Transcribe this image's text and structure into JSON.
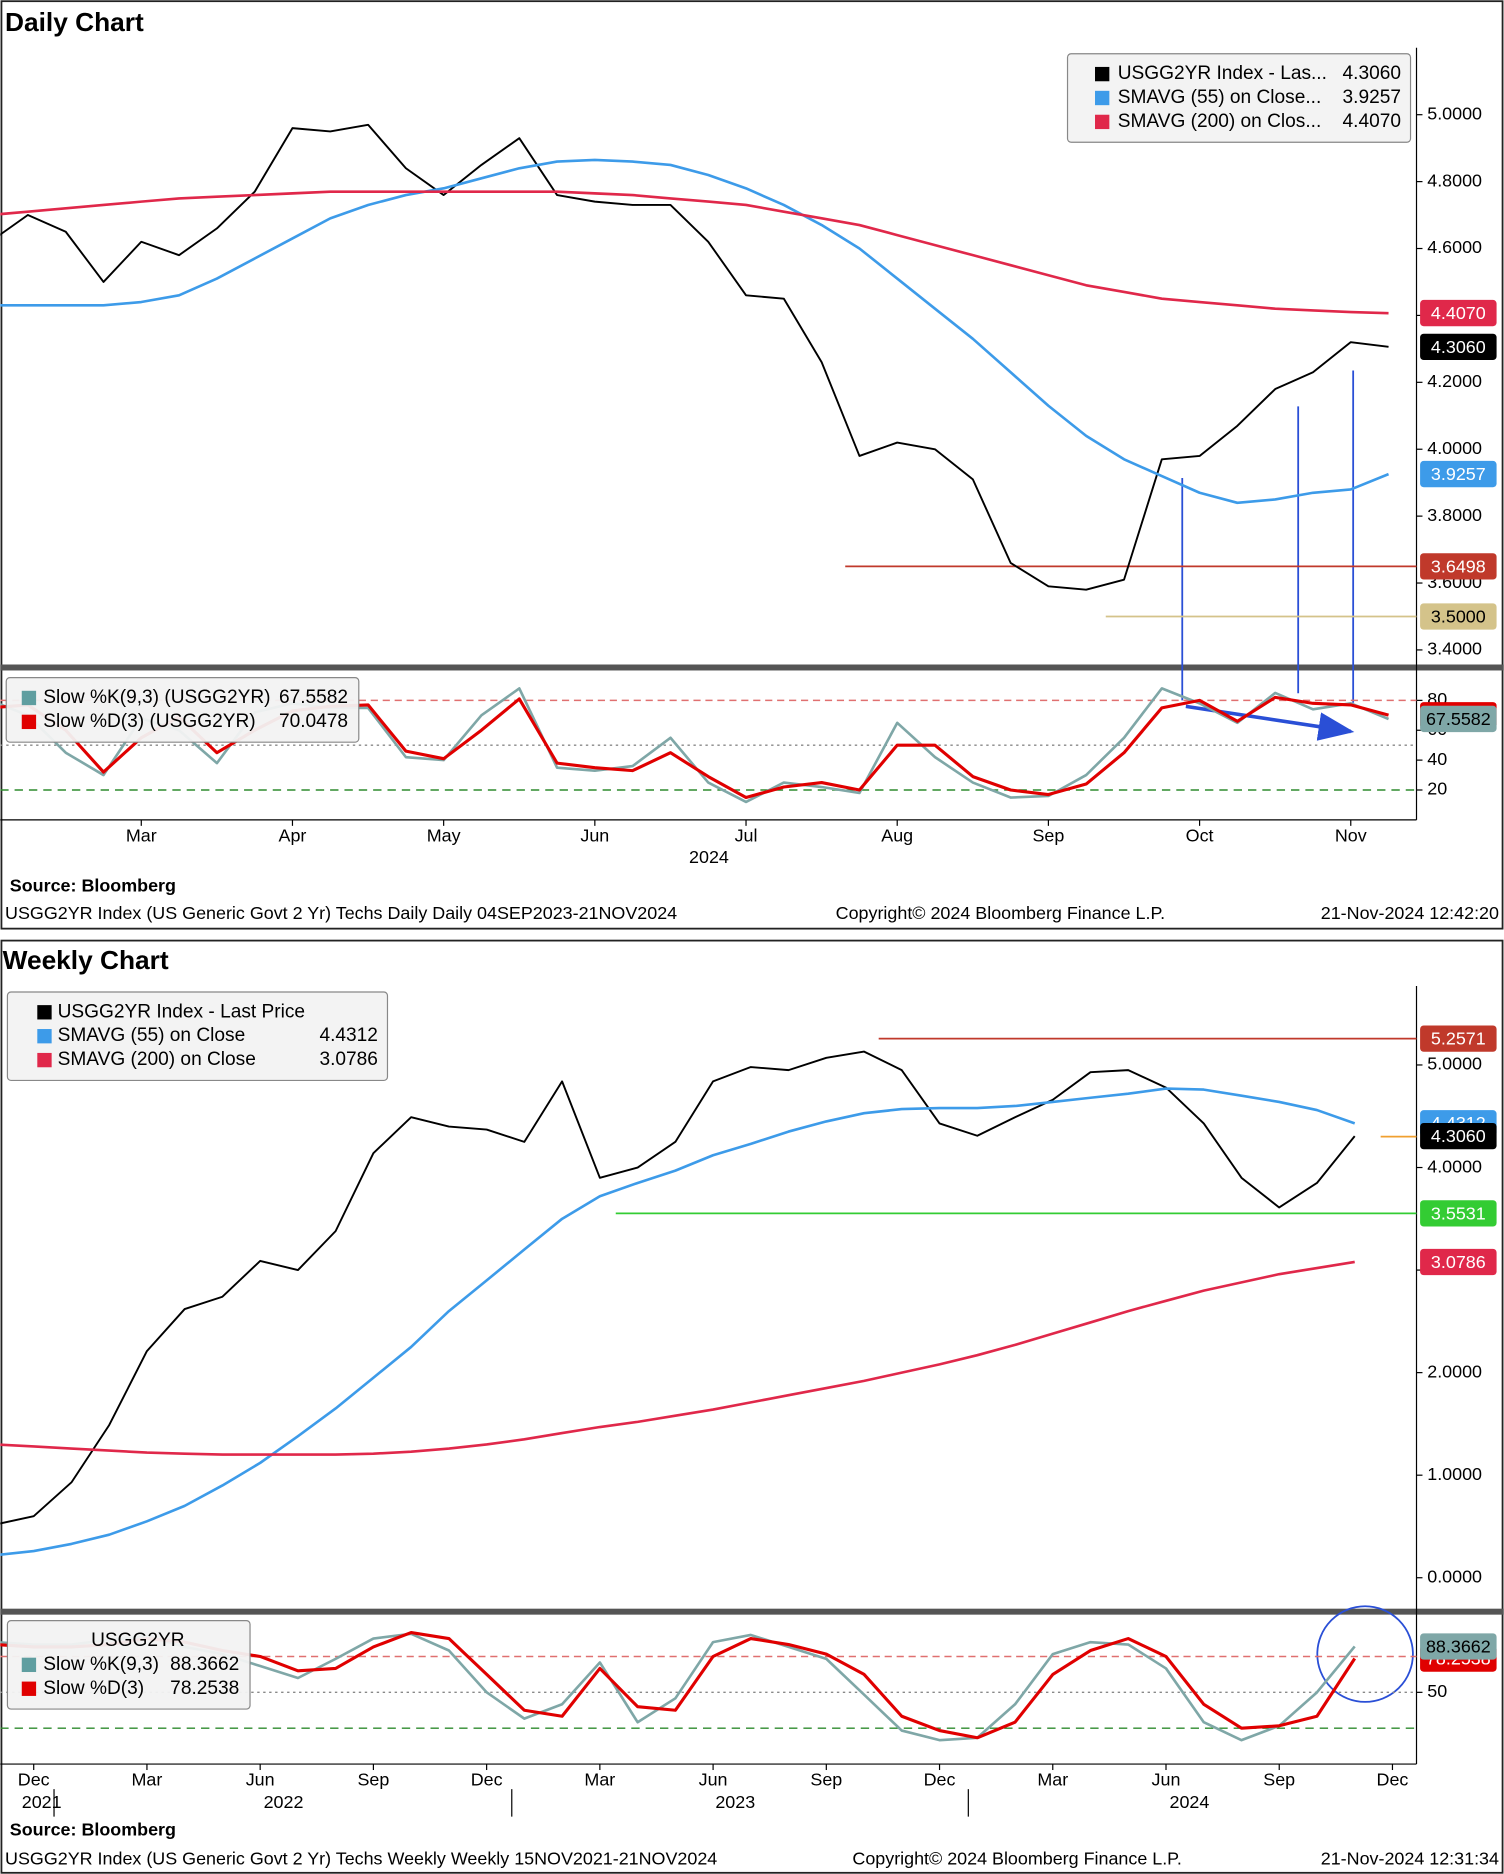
{
  "chart_data": [
    {
      "type": "line",
      "title": "Daily Chart",
      "ylim": [
        3.36,
        5.2
      ],
      "yticks": [
        {
          "value": 3.4,
          "label": "3.4000"
        },
        {
          "value": 3.6,
          "label": "3.6000"
        },
        {
          "value": 3.8,
          "label": "3.8000"
        },
        {
          "value": 4.0,
          "label": "4.0000"
        },
        {
          "value": 4.2,
          "label": "4.2000"
        },
        {
          "value": 4.4,
          "label": "4.4000"
        },
        {
          "value": 4.6,
          "label": "4.6000"
        },
        {
          "value": 4.8,
          "label": "4.8000"
        },
        {
          "value": 5.0,
          "label": "5.0000"
        }
      ],
      "hlines": [
        {
          "value": 3.6498,
          "label": "3.6498",
          "color": "#c0392b"
        },
        {
          "value": 3.5,
          "label": "3.5000",
          "color": "#d4c38a"
        }
      ],
      "series": [
        {
          "name": "USGG2YR Index - Las...",
          "color": "#000000",
          "values": [
            4.62,
            4.7,
            4.65,
            4.5,
            4.62,
            4.58,
            4.66,
            4.77,
            4.96,
            4.95,
            4.97,
            4.84,
            4.76,
            4.85,
            4.93,
            4.76,
            4.74,
            4.73,
            4.73,
            4.62,
            4.46,
            4.45,
            4.26,
            3.98,
            4.02,
            4.0,
            3.91,
            3.66,
            3.59,
            3.58,
            3.61,
            3.97,
            3.98,
            4.07,
            4.18,
            4.23,
            4.32,
            4.306
          ],
          "value_labels": [
            null,
            null,
            null,
            null,
            null,
            null,
            null,
            null,
            null,
            null,
            null,
            null,
            null,
            null,
            null,
            null,
            null,
            null,
            null,
            null,
            null,
            null,
            null,
            null,
            null,
            null,
            null,
            null,
            null,
            null,
            null,
            null,
            null,
            null,
            null,
            null,
            null,
            "4.3060"
          ]
        },
        {
          "name": "SMAVG (55)  on Close...",
          "color": "#3d9be9",
          "values": [
            4.43,
            4.43,
            4.43,
            4.43,
            4.44,
            4.46,
            4.51,
            4.57,
            4.63,
            4.69,
            4.73,
            4.76,
            4.78,
            4.81,
            4.84,
            4.86,
            4.865,
            4.86,
            4.85,
            4.82,
            4.78,
            4.73,
            4.67,
            4.6,
            4.51,
            4.42,
            4.33,
            4.23,
            4.13,
            4.04,
            3.97,
            3.92,
            3.87,
            3.84,
            3.85,
            3.87,
            3.88,
            3.9257
          ],
          "value_labels": [
            null,
            null,
            null,
            null,
            null,
            null,
            null,
            null,
            null,
            null,
            null,
            null,
            null,
            null,
            null,
            null,
            null,
            null,
            null,
            null,
            null,
            null,
            null,
            null,
            null,
            null,
            null,
            null,
            null,
            null,
            null,
            null,
            null,
            null,
            null,
            null,
            null,
            "3.9257"
          ]
        },
        {
          "name": "SMAVG (200)  on Clos...",
          "color": "#e0284a",
          "values": [
            4.7,
            4.71,
            4.72,
            4.73,
            4.74,
            4.75,
            4.755,
            4.76,
            4.765,
            4.77,
            4.77,
            4.77,
            4.77,
            4.77,
            4.77,
            4.77,
            4.765,
            4.76,
            4.75,
            4.74,
            4.73,
            4.71,
            4.69,
            4.67,
            4.64,
            4.61,
            4.58,
            4.55,
            4.52,
            4.49,
            4.47,
            4.45,
            4.44,
            4.43,
            4.42,
            4.415,
            4.41,
            4.407
          ],
          "value_labels": [
            null,
            null,
            null,
            null,
            null,
            null,
            null,
            null,
            null,
            null,
            null,
            null,
            null,
            null,
            null,
            null,
            null,
            null,
            null,
            null,
            null,
            null,
            null,
            null,
            null,
            null,
            null,
            null,
            null,
            null,
            null,
            null,
            null,
            null,
            null,
            null,
            null,
            "4.4070"
          ]
        }
      ]
    },
    {
      "type": "line",
      "ylim": [
        0,
        100
      ],
      "yticks": [
        20,
        40,
        60,
        80
      ],
      "levels": [
        80,
        50,
        20
      ],
      "categories": [
        null,
        null,
        null,
        null,
        "Mar",
        null,
        null,
        null,
        "Apr",
        null,
        null,
        null,
        "May",
        null,
        null,
        null,
        "Jun",
        null,
        null,
        null,
        "Jul",
        null,
        null,
        null,
        "Aug",
        null,
        null,
        null,
        "Sep",
        null,
        null,
        null,
        "Oct",
        null,
        null,
        null,
        "Nov",
        null
      ],
      "years": [
        "2024"
      ],
      "series": [
        {
          "name": "Slow %K(9,3) (USGG2YR)",
          "color": "#7fa7a7",
          "values": [
            80,
            70,
            45,
            30,
            68,
            60,
            38,
            72,
            78,
            75,
            75,
            42,
            40,
            70,
            88,
            35,
            33,
            36,
            55,
            25,
            12,
            25,
            22,
            18,
            65,
            42,
            25,
            15,
            16,
            30,
            55,
            88,
            78,
            65,
            85,
            74,
            78,
            67.5582
          ],
          "value_labels": [
            null,
            null,
            null,
            null,
            null,
            null,
            null,
            null,
            null,
            null,
            null,
            null,
            null,
            null,
            null,
            null,
            null,
            null,
            null,
            null,
            null,
            null,
            null,
            null,
            null,
            null,
            null,
            null,
            null,
            null,
            null,
            null,
            null,
            null,
            null,
            null,
            null,
            "67.5582"
          ]
        },
        {
          "name": "Slow %D(3) (USGG2YR)",
          "color": "#e00000",
          "values": [
            75,
            77,
            60,
            32,
            55,
            69,
            45,
            60,
            73,
            76,
            77,
            46,
            41,
            60,
            81,
            38,
            35,
            33,
            45,
            29,
            15,
            22,
            25,
            20,
            50,
            50,
            29,
            20,
            17,
            24,
            45,
            75,
            80,
            66,
            82,
            78,
            77,
            70.0478
          ],
          "value_labels": [
            null,
            null,
            null,
            null,
            null,
            null,
            null,
            null,
            null,
            null,
            null,
            null,
            null,
            null,
            null,
            null,
            null,
            null,
            null,
            null,
            null,
            null,
            null,
            null,
            null,
            null,
            null,
            null,
            null,
            null,
            null,
            null,
            null,
            null,
            null,
            null,
            null,
            "70.0478"
          ]
        }
      ]
    },
    {
      "type": "line",
      "title": "Weekly Chart",
      "ylim": [
        -0.29,
        5.77
      ],
      "yticks": [
        {
          "value": 0,
          "label": "0.0000"
        },
        {
          "value": 1,
          "label": "1.0000"
        },
        {
          "value": 2,
          "label": "2.0000"
        },
        {
          "value": 3,
          "label": "3.0000"
        },
        {
          "value": 4,
          "label": "4.0000"
        },
        {
          "value": 5,
          "label": "5.0000"
        }
      ],
      "hlines": [
        {
          "value": 5.2571,
          "label": "5.2571",
          "color": "#c0392b"
        },
        {
          "value": 3.5531,
          "label": "3.5531",
          "color": "#33cc33"
        }
      ],
      "series": [
        {
          "name": "USGG2YR Index - Last Price",
          "color": "#000000",
          "legend_value": false,
          "values": [
            0.52,
            0.6,
            0.93,
            1.49,
            2.21,
            2.62,
            2.74,
            3.09,
            3.0,
            3.38,
            4.14,
            4.49,
            4.4,
            4.37,
            4.25,
            4.84,
            3.9,
            4.0,
            4.25,
            4.84,
            4.98,
            4.95,
            5.07,
            5.13,
            4.95,
            4.43,
            4.31,
            4.49,
            4.66,
            4.93,
            4.95,
            4.78,
            4.43,
            3.9,
            3.61,
            3.85,
            4.306,
            null
          ],
          "value_labels": [
            null,
            null,
            null,
            null,
            null,
            null,
            null,
            null,
            null,
            null,
            null,
            null,
            null,
            null,
            null,
            null,
            null,
            null,
            null,
            null,
            null,
            null,
            null,
            null,
            null,
            null,
            null,
            null,
            null,
            null,
            null,
            null,
            null,
            null,
            null,
            null,
            "4.3060",
            null
          ]
        },
        {
          "name": "SMAVG (55)  on Close",
          "color": "#3d9be9",
          "values": [
            0.22,
            0.26,
            0.33,
            0.42,
            0.55,
            0.7,
            0.9,
            1.12,
            1.38,
            1.65,
            1.95,
            2.25,
            2.6,
            2.9,
            3.2,
            3.5,
            3.72,
            3.85,
            3.97,
            4.12,
            4.23,
            4.35,
            4.45,
            4.53,
            4.57,
            4.58,
            4.58,
            4.6,
            4.64,
            4.68,
            4.72,
            4.77,
            4.76,
            4.7,
            4.64,
            4.56,
            4.4312,
            null
          ],
          "value_labels": [
            null,
            null,
            null,
            null,
            null,
            null,
            null,
            null,
            null,
            null,
            null,
            null,
            null,
            null,
            null,
            null,
            null,
            null,
            null,
            null,
            null,
            null,
            null,
            null,
            null,
            null,
            null,
            null,
            null,
            null,
            null,
            null,
            null,
            null,
            null,
            null,
            "4.4312",
            null
          ]
        },
        {
          "name": "SMAVG (200)  on Close",
          "color": "#e0284a",
          "values": [
            1.3,
            1.28,
            1.26,
            1.24,
            1.22,
            1.21,
            1.2,
            1.2,
            1.2,
            1.2,
            1.21,
            1.23,
            1.26,
            1.3,
            1.35,
            1.41,
            1.47,
            1.52,
            1.58,
            1.64,
            1.71,
            1.78,
            1.85,
            1.92,
            2.0,
            2.08,
            2.17,
            2.27,
            2.38,
            2.49,
            2.6,
            2.7,
            2.8,
            2.88,
            2.96,
            3.02,
            3.0786,
            null
          ],
          "value_labels": [
            null,
            null,
            null,
            null,
            null,
            null,
            null,
            null,
            null,
            null,
            null,
            null,
            null,
            null,
            null,
            null,
            null,
            null,
            null,
            null,
            null,
            null,
            null,
            null,
            null,
            null,
            null,
            null,
            null,
            null,
            null,
            null,
            null,
            null,
            null,
            null,
            "3.0786",
            null
          ]
        }
      ]
    },
    {
      "type": "line",
      "ylim": [
        -10,
        114
      ],
      "yticks": [
        50
      ],
      "levels": [
        80,
        50,
        20
      ],
      "legend_title": "USGG2YR",
      "categories": [
        null,
        "Dec",
        null,
        null,
        "Mar",
        null,
        null,
        "Jun",
        null,
        null,
        "Sep",
        null,
        null,
        "Dec",
        null,
        null,
        "Mar",
        null,
        null,
        "Jun",
        null,
        null,
        "Sep",
        null,
        null,
        "Dec",
        null,
        null,
        "Mar",
        null,
        null,
        "Jun",
        null,
        null,
        "Sep",
        null,
        null,
        "Dec"
      ],
      "years": [
        "2021",
        "2022",
        "2023",
        "2024"
      ],
      "series": [
        {
          "name": "Slow %K(9,3)",
          "color": "#7fa7a7",
          "values": [
            92,
            90,
            90,
            94,
            97,
            88,
            82,
            72,
            62,
            78,
            95,
            99,
            85,
            50,
            28,
            40,
            75,
            25,
            45,
            92,
            98,
            88,
            78,
            48,
            18,
            10,
            12,
            40,
            82,
            92,
            90,
            70,
            25,
            10,
            22,
            50,
            88.3662,
            null
          ],
          "value_labels": [
            null,
            null,
            null,
            null,
            null,
            null,
            null,
            null,
            null,
            null,
            null,
            null,
            null,
            null,
            null,
            null,
            null,
            null,
            null,
            null,
            null,
            null,
            null,
            null,
            null,
            null,
            null,
            null,
            null,
            null,
            null,
            null,
            null,
            null,
            null,
            null,
            "88.3662",
            null
          ]
        },
        {
          "name": "Slow %D(3)",
          "color": "#e00000",
          "values": [
            90,
            88,
            88,
            90,
            95,
            92,
            85,
            80,
            68,
            70,
            88,
            100,
            95,
            65,
            35,
            30,
            70,
            38,
            35,
            80,
            95,
            90,
            82,
            65,
            30,
            18,
            12,
            25,
            65,
            85,
            95,
            80,
            40,
            20,
            22,
            30,
            78.2538,
            null
          ],
          "value_labels": [
            null,
            null,
            null,
            null,
            null,
            null,
            null,
            null,
            null,
            null,
            null,
            null,
            null,
            null,
            null,
            null,
            null,
            null,
            null,
            null,
            null,
            null,
            null,
            null,
            null,
            null,
            null,
            null,
            null,
            null,
            null,
            null,
            null,
            null,
            null,
            null,
            "78.2538",
            null
          ]
        }
      ]
    }
  ],
  "daily_footer": {
    "source": "Source:  Bloomberg",
    "description": "USGG2YR Index (US Generic Govt 2 Yr) Techs Daily  Daily 04SEP2023-21NOV2024",
    "copyright": "Copyright© 2024 Bloomberg Finance L.P.",
    "timestamp": "21-Nov-2024 12:42:20"
  },
  "weekly_footer": {
    "source": "Source:  Bloomberg",
    "description": "USGG2YR Index (US Generic Govt 2 Yr) Techs Weekly  Weekly 15NOV2021-21NOV2024",
    "copyright": "Copyright© 2024 Bloomberg Finance L.P.",
    "timestamp": "21-Nov-2024 12:31:34"
  }
}
